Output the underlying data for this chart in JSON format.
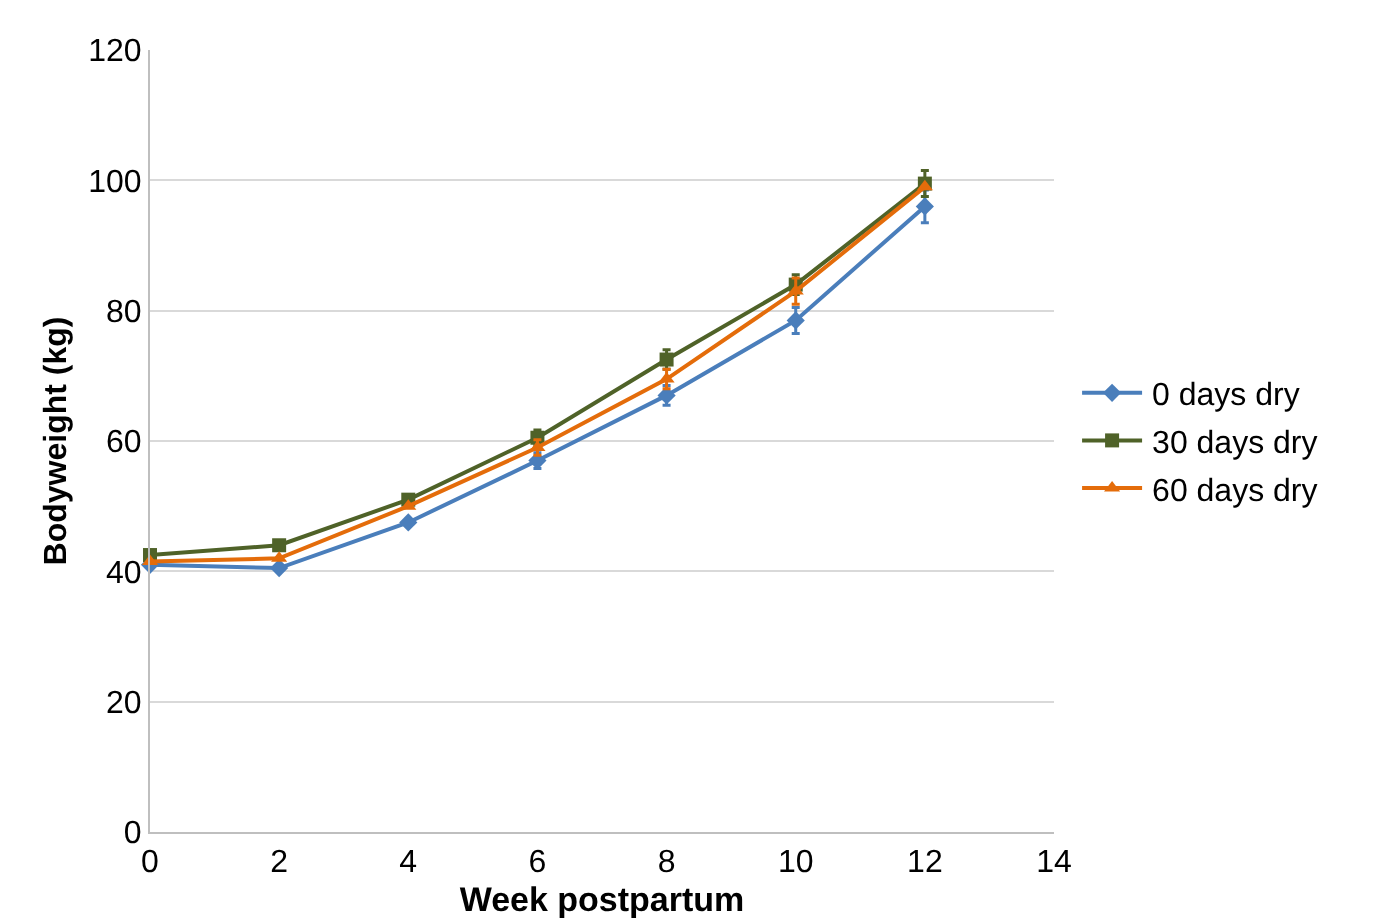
{
  "chart_data": {
    "type": "line",
    "xlabel": "Week postpartum",
    "ylabel": "Bodyweight (kg)",
    "x": [
      0,
      2,
      4,
      6,
      8,
      10,
      12
    ],
    "series": [
      {
        "name": "0 days dry",
        "color": "#4a7ebb",
        "marker": "diamond",
        "values": [
          41,
          40.5,
          47.5,
          57,
          67,
          78.5,
          96
        ],
        "errors": [
          null,
          null,
          null,
          1.2,
          1.5,
          2,
          2.5
        ]
      },
      {
        "name": "30 days dry",
        "color": "#4f6228",
        "marker": "square",
        "values": [
          42.5,
          44,
          51,
          60.5,
          72.5,
          84,
          99.5
        ],
        "errors": [
          null,
          null,
          null,
          1.2,
          1.5,
          1.5,
          2
        ]
      },
      {
        "name": "60 days dry",
        "color": "#e46c0a",
        "marker": "triangle",
        "values": [
          41.5,
          42,
          50,
          59,
          69.5,
          83,
          99
        ],
        "errors": [
          null,
          null,
          null,
          1.2,
          1.5,
          2,
          null
        ]
      }
    ],
    "xlim": [
      0,
      14
    ],
    "xticks": [
      0,
      2,
      4,
      6,
      8,
      10,
      12,
      14
    ],
    "ylim": [
      0,
      120
    ],
    "yticks": [
      0,
      20,
      40,
      60,
      80,
      100,
      120
    ],
    "grid": "y",
    "legend": "right",
    "line_style": "solid"
  }
}
